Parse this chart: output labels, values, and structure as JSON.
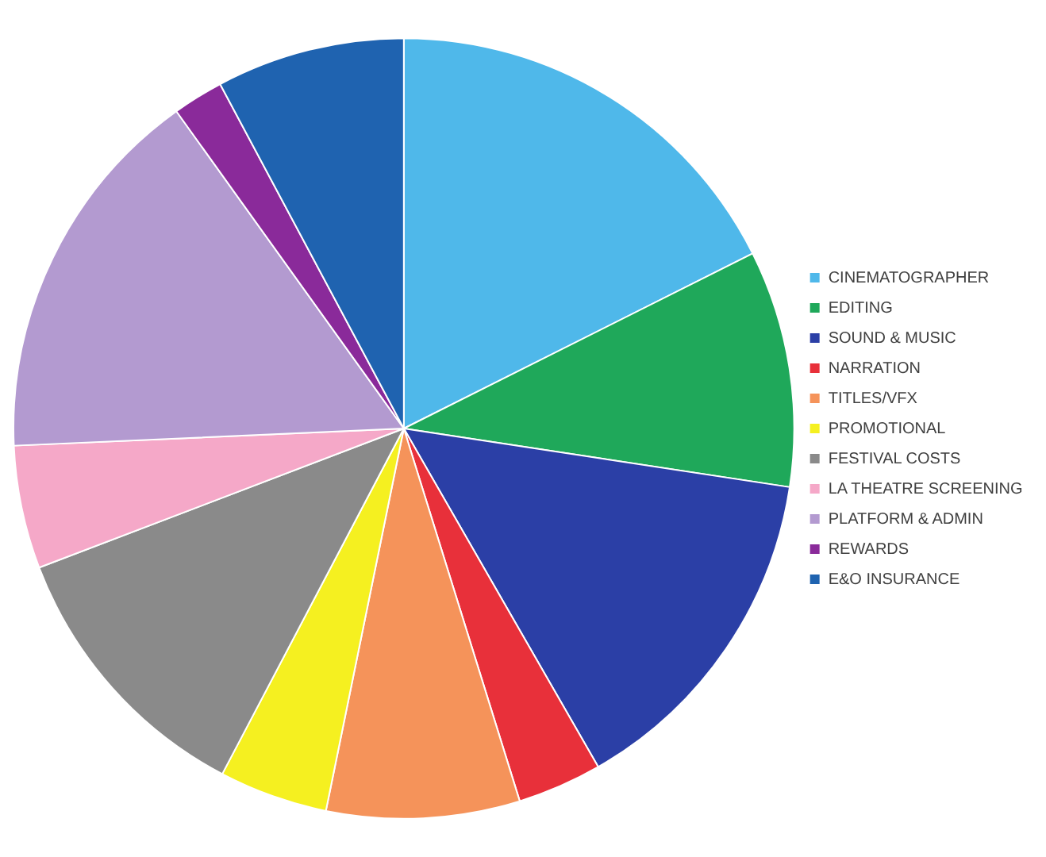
{
  "chart_data": {
    "type": "pie",
    "categories": [
      "CINEMATOGRAPHER",
      "EDITING",
      "SOUND & MUSIC",
      "NARRATION",
      "TITLES/VFX",
      "PROMOTIONAL",
      "FESTIVAL COSTS",
      "LA THEATRE SCREENING",
      "PLATFORM & ADMIN",
      "REWARDS",
      "E&O INSURANCE"
    ],
    "values": [
      17.6,
      9.8,
      14.3,
      3.5,
      8.0,
      4.5,
      11.5,
      5.1,
      15.8,
      2.1,
      7.8
    ],
    "colors": [
      "#4fb8ea",
      "#1fa85a",
      "#2b3fa6",
      "#e8303a",
      "#f5935a",
      "#f5f020",
      "#8a8a8a",
      "#f5a8c8",
      "#b39ad0",
      "#8a2a9a",
      "#1f63b0"
    ],
    "legend": "right"
  }
}
